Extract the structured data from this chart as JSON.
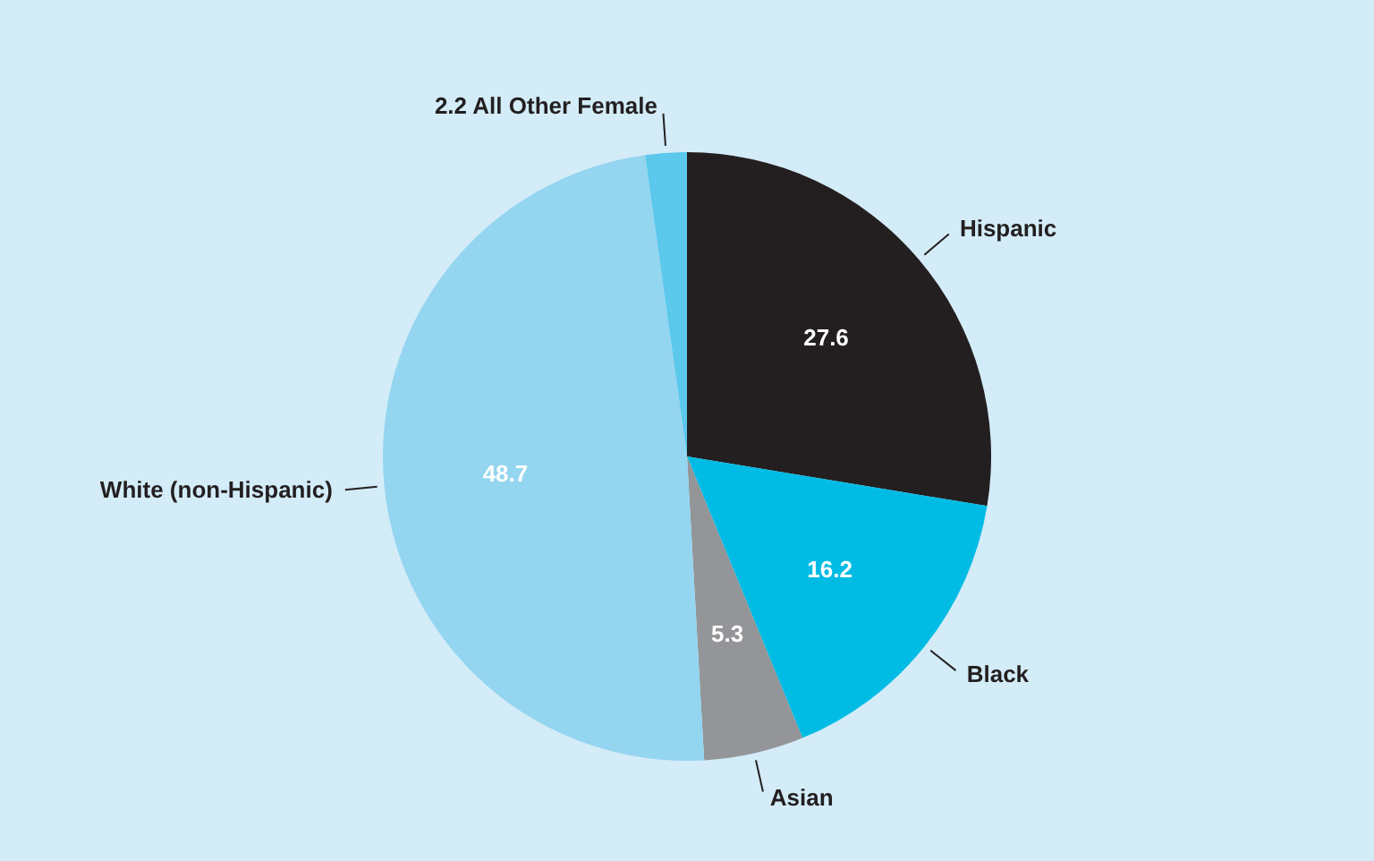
{
  "chart_data": {
    "type": "pie",
    "categories": [
      "Hispanic",
      "Black",
      "Asian",
      "White (non-Hispanic)",
      "All Other Female"
    ],
    "values": [
      27.6,
      16.2,
      5.3,
      48.7,
      2.2
    ],
    "colors": [
      "#231f20",
      "#00bce4",
      "#939598",
      "#94d5f0",
      "#5bc8ec"
    ],
    "value_labels": [
      "27.6",
      "16.2",
      "5.3",
      "48.7",
      "2.2"
    ]
  }
}
